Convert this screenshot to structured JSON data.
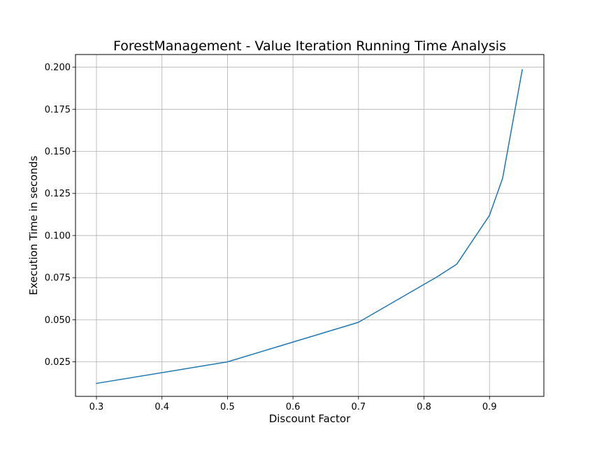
{
  "chart_data": {
    "type": "line",
    "title": "ForestManagement - Value Iteration Running Time Analysis",
    "xlabel": "Discount Factor",
    "ylabel": "Execution Time in seconds",
    "xlim": [
      0.268,
      0.983
    ],
    "ylim": [
      0.0045,
      0.2075
    ],
    "x_ticks": [
      0.3,
      0.4,
      0.5,
      0.6,
      0.7,
      0.8,
      0.9
    ],
    "x_tick_labels": [
      "0.3",
      "0.4",
      "0.5",
      "0.6",
      "0.7",
      "0.8",
      "0.9"
    ],
    "y_ticks": [
      0.025,
      0.05,
      0.075,
      0.1,
      0.125,
      0.15,
      0.175,
      0.2
    ],
    "y_tick_labels": [
      "0.025",
      "0.050",
      "0.075",
      "0.100",
      "0.125",
      "0.150",
      "0.175",
      "0.200"
    ],
    "grid": true,
    "series": [
      {
        "color": "#1f77b4",
        "x": [
          0.3,
          0.5,
          0.7,
          0.82,
          0.85,
          0.9,
          0.92,
          0.95
        ],
        "values": [
          0.0122,
          0.025,
          0.0485,
          0.0755,
          0.083,
          0.112,
          0.134,
          0.1985
        ]
      }
    ]
  }
}
